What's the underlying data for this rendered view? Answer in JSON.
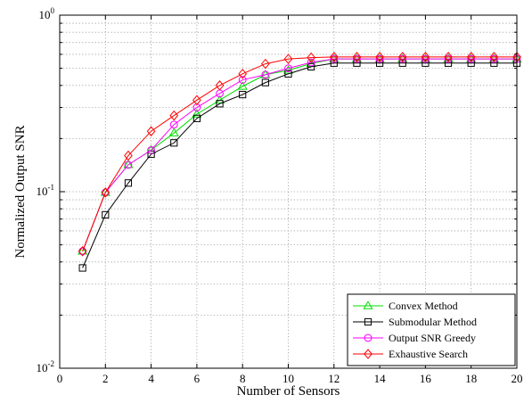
{
  "chart_data": {
    "type": "line",
    "title": "",
    "xlabel": "Number of Sensors",
    "ylabel": "Normalized Output SNR",
    "xlim": [
      0,
      20
    ],
    "ylim": [
      0.01,
      1
    ],
    "yscale": "log",
    "grid": true,
    "legend_position": "bottom-right",
    "x_ticks": [
      "0",
      "2",
      "4",
      "6",
      "8",
      "10",
      "12",
      "14",
      "16",
      "18",
      "20"
    ],
    "y_ticks": [
      {
        "base": "10",
        "exp": "-2"
      },
      {
        "base": "10",
        "exp": "-1"
      },
      {
        "base": "10",
        "exp": "0"
      }
    ],
    "x": [
      1,
      2,
      3,
      4,
      5,
      6,
      7,
      8,
      9,
      10,
      11,
      12,
      13,
      14,
      15,
      16,
      17,
      18,
      19,
      20
    ],
    "series": [
      {
        "name": "Convex Method",
        "color": "#00dd00",
        "marker": "triangle",
        "values": [
          0.046,
          0.099,
          0.142,
          0.172,
          0.215,
          0.275,
          0.33,
          0.395,
          0.46,
          0.487,
          0.532,
          0.565,
          0.565,
          0.565,
          0.565,
          0.565,
          0.565,
          0.565,
          0.565,
          0.565
        ]
      },
      {
        "name": "Submodular Method",
        "color": "#000000",
        "marker": "square",
        "values": [
          0.037,
          0.074,
          0.112,
          0.163,
          0.189,
          0.26,
          0.315,
          0.355,
          0.415,
          0.465,
          0.51,
          0.535,
          0.535,
          0.535,
          0.535,
          0.535,
          0.535,
          0.535,
          0.535,
          0.535
        ]
      },
      {
        "name": "Output SNR Greedy",
        "color": "#ff00ff",
        "marker": "circle",
        "values": [
          0.046,
          0.099,
          0.142,
          0.172,
          0.24,
          0.3,
          0.36,
          0.43,
          0.46,
          0.5,
          0.54,
          0.565,
          0.565,
          0.565,
          0.565,
          0.565,
          0.565,
          0.565,
          0.565,
          0.565
        ]
      },
      {
        "name": "Exhaustive Search",
        "color": "#ff0000",
        "marker": "diamond",
        "values": [
          0.046,
          0.099,
          0.16,
          0.22,
          0.27,
          0.33,
          0.4,
          0.465,
          0.53,
          0.565,
          0.575,
          0.58,
          0.58,
          0.58,
          0.58,
          0.58,
          0.58,
          0.58,
          0.58,
          0.58
        ]
      }
    ]
  }
}
